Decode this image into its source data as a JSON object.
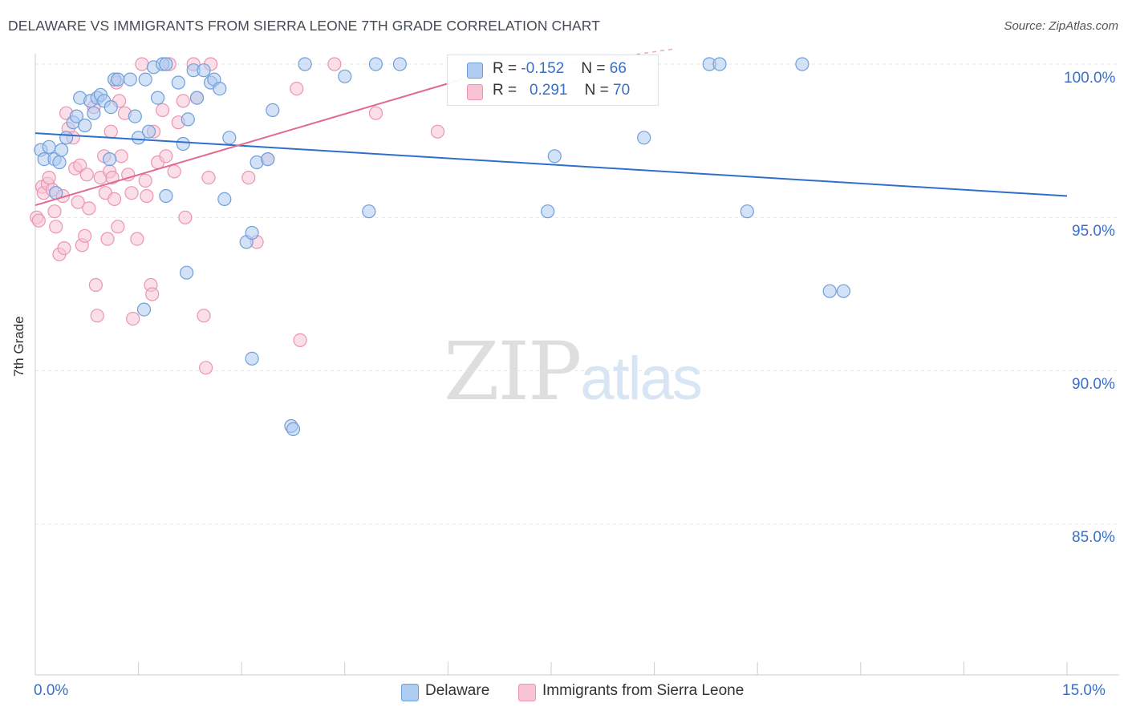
{
  "title": "DELAWARE VS IMMIGRANTS FROM SIERRA LEONE 7TH GRADE CORRELATION CHART",
  "source": "Source: ZipAtlas.com",
  "watermark": {
    "part1": "ZIP",
    "part2": "atlas"
  },
  "colors": {
    "delaware_fill": "#aecbf0",
    "delaware_stroke": "#6f9fd8",
    "delaware_line": "#2f6fcc",
    "sierra_fill": "#f8c4d5",
    "sierra_stroke": "#ec94b1",
    "sierra_line": "#e2698f",
    "grid": "#e3e6ea",
    "axis_label": "#3a6fc4"
  },
  "legend": {
    "rows": [
      {
        "r_label": "R =",
        "r_value": "-0.152",
        "n_label": "N =",
        "n_value": "66"
      },
      {
        "r_label": "R =",
        "r_value": "0.291",
        "n_label": "N =",
        "n_value": "70"
      }
    ]
  },
  "bottom_legend": {
    "delaware": "Delaware",
    "sierra": "Immigrants from Sierra Leone"
  },
  "chart_data": {
    "type": "scatter",
    "title": "DELAWARE VS IMMIGRANTS FROM SIERRA LEONE 7TH GRADE CORRELATION CHART",
    "xlabel": "",
    "ylabel": "7th Grade",
    "xlim": [
      0.0,
      15.0
    ],
    "ylim": [
      80.5,
      100.9
    ],
    "x_tick_labels": [
      "0.0%",
      "15.0%"
    ],
    "y_ticks": [
      85.0,
      90.0,
      95.0,
      100.0
    ],
    "y_tick_labels": [
      "85.0%",
      "90.0%",
      "95.0%",
      "100.0%"
    ],
    "grid": true,
    "legend_position": "top-center",
    "series": [
      {
        "name": "Delaware",
        "r": -0.152,
        "n": 66,
        "trend": {
          "x": [
            0.0,
            15.0
          ],
          "y": [
            97.75,
            95.7
          ]
        },
        "points": [
          [
            0.08,
            97.2
          ],
          [
            0.13,
            96.9
          ],
          [
            0.2,
            97.3
          ],
          [
            0.28,
            96.9
          ],
          [
            0.35,
            96.8
          ],
          [
            0.38,
            97.2
          ],
          [
            0.3,
            95.8
          ],
          [
            0.45,
            97.6
          ],
          [
            0.55,
            98.1
          ],
          [
            0.6,
            98.3
          ],
          [
            0.65,
            98.9
          ],
          [
            0.72,
            98.0
          ],
          [
            0.8,
            98.8
          ],
          [
            0.85,
            98.4
          ],
          [
            0.9,
            98.9
          ],
          [
            0.95,
            99.0
          ],
          [
            1.0,
            98.8
          ],
          [
            1.1,
            98.6
          ],
          [
            1.08,
            96.9
          ],
          [
            1.15,
            99.5
          ],
          [
            1.2,
            99.5
          ],
          [
            1.38,
            99.5
          ],
          [
            1.45,
            98.3
          ],
          [
            1.5,
            97.6
          ],
          [
            1.6,
            99.5
          ],
          [
            1.65,
            97.8
          ],
          [
            1.72,
            99.9
          ],
          [
            1.78,
            98.9
          ],
          [
            1.85,
            100.0
          ],
          [
            1.9,
            100.0
          ],
          [
            1.9,
            95.7
          ],
          [
            2.08,
            99.4
          ],
          [
            2.15,
            97.4
          ],
          [
            2.22,
            98.2
          ],
          [
            2.3,
            99.8
          ],
          [
            2.35,
            98.9
          ],
          [
            2.45,
            99.8
          ],
          [
            2.55,
            99.4
          ],
          [
            2.6,
            99.5
          ],
          [
            2.68,
            99.2
          ],
          [
            2.75,
            95.6
          ],
          [
            2.82,
            97.6
          ],
          [
            3.07,
            94.2
          ],
          [
            3.15,
            94.5
          ],
          [
            3.22,
            96.8
          ],
          [
            3.38,
            96.9
          ],
          [
            3.45,
            98.5
          ],
          [
            3.92,
            100.0
          ],
          [
            4.5,
            99.6
          ],
          [
            4.85,
            95.2
          ],
          [
            4.95,
            100.0
          ],
          [
            5.3,
            100.0
          ],
          [
            1.58,
            92.0
          ],
          [
            2.2,
            93.2
          ],
          [
            3.15,
            90.4
          ],
          [
            3.72,
            88.2
          ],
          [
            3.75,
            88.1
          ],
          [
            7.45,
            95.2
          ],
          [
            7.55,
            97.0
          ],
          [
            8.85,
            97.6
          ],
          [
            9.8,
            100.0
          ],
          [
            9.95,
            100.0
          ],
          [
            10.35,
            95.2
          ],
          [
            11.15,
            100.0
          ],
          [
            11.55,
            92.6
          ],
          [
            11.75,
            92.6
          ]
        ]
      },
      {
        "name": "Immigrants from Sierra Leone",
        "r": 0.291,
        "n": 70,
        "trend": {
          "x": [
            0.0,
            6.2
          ],
          "y": [
            95.4,
            99.5
          ]
        },
        "trend_dashed": {
          "x": [
            6.2,
            9.3
          ],
          "y": [
            99.5,
            100.5
          ]
        },
        "points": [
          [
            0.02,
            95.0
          ],
          [
            0.05,
            94.9
          ],
          [
            0.1,
            96.0
          ],
          [
            0.12,
            95.8
          ],
          [
            0.18,
            96.1
          ],
          [
            0.2,
            96.3
          ],
          [
            0.25,
            95.9
          ],
          [
            0.28,
            95.2
          ],
          [
            0.3,
            94.7
          ],
          [
            0.35,
            93.8
          ],
          [
            0.4,
            95.7
          ],
          [
            0.42,
            94.0
          ],
          [
            0.45,
            98.4
          ],
          [
            0.48,
            97.9
          ],
          [
            0.55,
            97.6
          ],
          [
            0.58,
            96.6
          ],
          [
            0.62,
            95.5
          ],
          [
            0.65,
            96.7
          ],
          [
            0.68,
            94.1
          ],
          [
            0.72,
            94.4
          ],
          [
            0.75,
            96.4
          ],
          [
            0.78,
            95.3
          ],
          [
            0.85,
            98.6
          ],
          [
            0.88,
            92.8
          ],
          [
            0.9,
            91.8
          ],
          [
            0.95,
            96.3
          ],
          [
            1.0,
            97.0
          ],
          [
            1.02,
            95.8
          ],
          [
            1.05,
            94.3
          ],
          [
            1.08,
            96.5
          ],
          [
            1.1,
            97.8
          ],
          [
            1.12,
            96.3
          ],
          [
            1.15,
            95.6
          ],
          [
            1.18,
            99.4
          ],
          [
            1.2,
            94.7
          ],
          [
            1.22,
            98.8
          ],
          [
            1.25,
            97.0
          ],
          [
            1.3,
            98.4
          ],
          [
            1.35,
            96.4
          ],
          [
            1.4,
            95.8
          ],
          [
            1.42,
            91.7
          ],
          [
            1.48,
            94.3
          ],
          [
            1.55,
            100.0
          ],
          [
            1.6,
            96.2
          ],
          [
            1.62,
            95.7
          ],
          [
            1.68,
            92.8
          ],
          [
            1.7,
            92.5
          ],
          [
            1.72,
            97.8
          ],
          [
            1.78,
            96.8
          ],
          [
            1.85,
            98.5
          ],
          [
            1.9,
            97.0
          ],
          [
            1.95,
            100.0
          ],
          [
            2.02,
            96.5
          ],
          [
            2.08,
            98.1
          ],
          [
            2.15,
            98.8
          ],
          [
            2.18,
            95.0
          ],
          [
            2.3,
            100.0
          ],
          [
            2.35,
            98.9
          ],
          [
            2.52,
            96.3
          ],
          [
            2.55,
            100.0
          ],
          [
            2.45,
            91.8
          ],
          [
            2.48,
            90.1
          ],
          [
            3.1,
            96.3
          ],
          [
            3.22,
            94.2
          ],
          [
            3.38,
            96.9
          ],
          [
            3.8,
            99.2
          ],
          [
            3.85,
            91.0
          ],
          [
            4.35,
            100.0
          ],
          [
            4.95,
            98.4
          ],
          [
            5.85,
            97.8
          ]
        ]
      }
    ]
  }
}
